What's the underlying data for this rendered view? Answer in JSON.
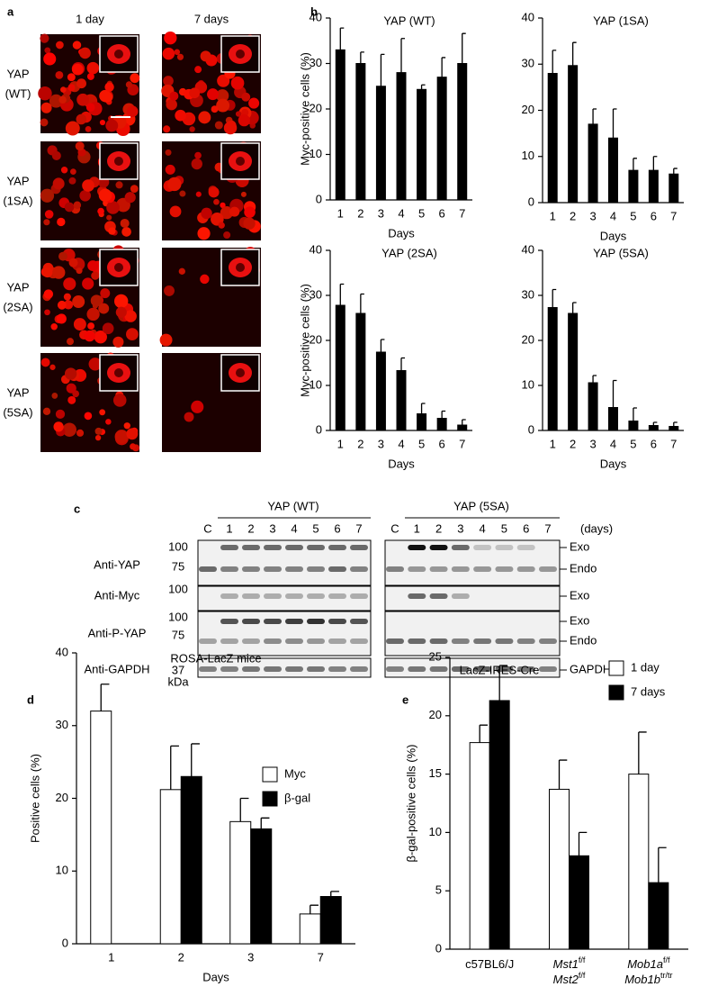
{
  "panel_labels": [
    "a",
    "b",
    "c",
    "d",
    "e"
  ],
  "micrographs": {
    "columns": [
      "1 day",
      "7 days"
    ],
    "rows": [
      [
        "YAP",
        "(WT)"
      ],
      [
        "YAP",
        "(1SA)"
      ],
      [
        "YAP",
        "(2SA)"
      ],
      [
        "YAP",
        "(5SA)"
      ]
    ]
  },
  "western_blot": {
    "groups": [
      {
        "title": "YAP (WT)",
        "lanes": [
          "C",
          "1",
          "2",
          "3",
          "4",
          "5",
          "6",
          "7"
        ]
      },
      {
        "title": "YAP (5SA)",
        "lanes": [
          "C",
          "1",
          "2",
          "3",
          "4",
          "5",
          "6",
          "7"
        ],
        "unit": "(days)"
      }
    ],
    "rows": [
      "Anti-YAP",
      "Anti-Myc",
      "Anti-P-YAP",
      "Anti-GAPDH"
    ],
    "markers": [
      100,
      75,
      100,
      100,
      75,
      37
    ],
    "marker_unit": "kDa",
    "band_labels": [
      "Exo",
      "Endo",
      "Exo",
      "Exo",
      "Endo",
      "GAPDH"
    ]
  },
  "chart_data": [
    {
      "type": "bar",
      "title": "YAP (WT)",
      "xlabel": "Days",
      "ylabel": "Myc-positive cells (%)",
      "categories": [
        "1",
        "2",
        "3",
        "4",
        "5",
        "6",
        "7"
      ],
      "values": [
        33,
        30,
        25,
        28,
        24.3,
        27,
        30
      ],
      "errors": [
        4.8,
        2.5,
        7,
        7.5,
        1,
        4.3,
        6.6
      ],
      "color": "#000000",
      "ylim": [
        0,
        40
      ],
      "yticks": [
        0,
        10,
        20,
        30,
        40
      ]
    },
    {
      "type": "bar",
      "title": "YAP (1SA)",
      "xlabel": "Days",
      "categories": [
        "1",
        "2",
        "3",
        "4",
        "5",
        "6",
        "7"
      ],
      "values": [
        28,
        29.7,
        17,
        14,
        7,
        7,
        6.2
      ],
      "errors": [
        5,
        5,
        3.3,
        6.3,
        2.6,
        3,
        1.2
      ],
      "color": "#000000",
      "ylim": [
        0,
        40
      ],
      "yticks": [
        0,
        10,
        20,
        30,
        40
      ]
    },
    {
      "type": "bar",
      "title": "YAP (2SA)",
      "xlabel": "Days",
      "ylabel": "Myc-positive cells (%)",
      "categories": [
        "1",
        "2",
        "3",
        "4",
        "5",
        "6",
        "7"
      ],
      "values": [
        27.8,
        26,
        17.4,
        13.3,
        3.7,
        2.7,
        1.2
      ],
      "errors": [
        4.7,
        4.3,
        2.8,
        2.8,
        2.3,
        1.6,
        1.2
      ],
      "color": "#000000",
      "ylim": [
        0,
        40
      ],
      "yticks": [
        0,
        10,
        20,
        30,
        40
      ]
    },
    {
      "type": "bar",
      "title": "YAP (5SA)",
      "xlabel": "Days",
      "categories": [
        "1",
        "2",
        "3",
        "4",
        "5",
        "6",
        "7"
      ],
      "values": [
        27.3,
        26,
        10.6,
        5.1,
        2.1,
        1.1,
        0.9
      ],
      "errors": [
        4,
        2.4,
        1.6,
        6,
        2.9,
        0.7,
        0.9
      ],
      "color": "#000000",
      "ylim": [
        0,
        40
      ],
      "yticks": [
        0,
        10,
        20,
        30,
        40
      ]
    },
    {
      "type": "bar",
      "title": "ROSA-LacZ mice",
      "xlabel": "Days",
      "ylabel": "Positive cells (%)",
      "categories": [
        "1",
        "2",
        "3",
        "7"
      ],
      "series": [
        {
          "name": "Myc",
          "color": "#ffffff",
          "values": [
            32,
            21.2,
            16.8,
            4.1
          ],
          "errors": [
            3.7,
            6,
            3.2,
            1.2
          ]
        },
        {
          "name": "β-gal",
          "color": "#000000",
          "values": [
            null,
            23,
            15.8,
            6.5
          ],
          "errors": [
            null,
            4.5,
            1.5,
            0.7
          ]
        }
      ],
      "ylim": [
        0,
        40
      ],
      "yticks": [
        0,
        10,
        20,
        30,
        40
      ],
      "legend": "top-right"
    },
    {
      "type": "bar",
      "title": "LacZ-IRES-Cre",
      "ylabel": "β-gal-positive cells (%)",
      "categories": [
        [
          {
            "text": "c57BL6/J"
          }
        ],
        [
          {
            "text": "Mst1",
            "sup": "f/f"
          },
          {
            "text": "Mst2",
            "sup": "f/f"
          }
        ],
        [
          {
            "text": "Mob1a",
            "sup": "f/f"
          },
          {
            "text": "Mob1b",
            "sup": "tr/tr"
          }
        ]
      ],
      "series": [
        {
          "name": "1 day",
          "color": "#ffffff",
          "values": [
            17.7,
            13.7,
            15
          ],
          "errors": [
            1.5,
            2.5,
            3.6
          ]
        },
        {
          "name": "7 days",
          "color": "#000000",
          "values": [
            21.3,
            8,
            5.7
          ],
          "errors": [
            3,
            2,
            3
          ]
        }
      ],
      "ylim": [
        0,
        25
      ],
      "yticks": [
        0,
        5,
        10,
        15,
        20,
        25
      ],
      "legend": "top-right"
    }
  ]
}
